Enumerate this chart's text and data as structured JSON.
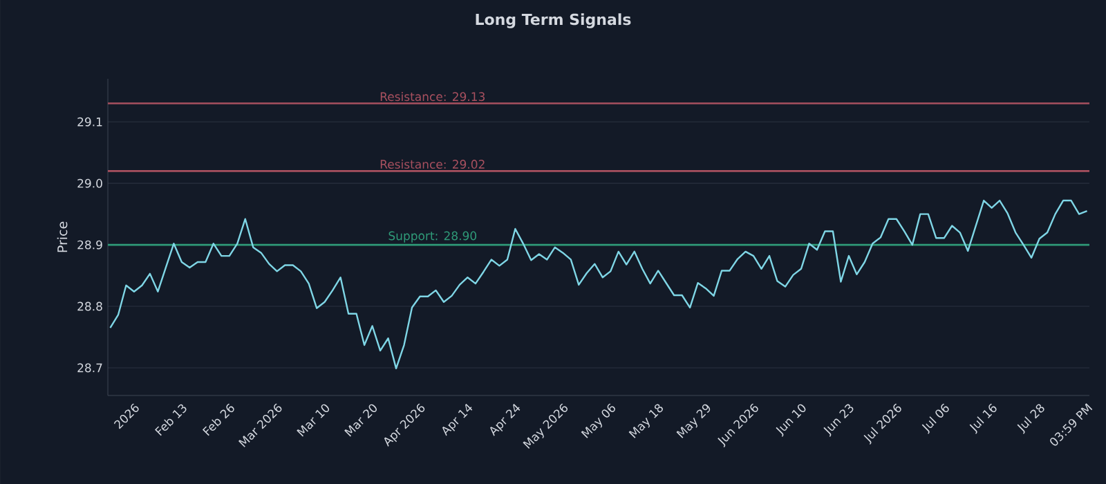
{
  "chart_data": {
    "type": "line",
    "title": "Long Term Signals",
    "ylabel": "Price",
    "categories": [
      null,
      null,
      null,
      "2026",
      null,
      null,
      null,
      null,
      null,
      "Feb 13",
      null,
      null,
      null,
      null,
      null,
      "Feb 26",
      null,
      null,
      null,
      null,
      null,
      "Mar 2026",
      null,
      null,
      null,
      null,
      null,
      "Mar 10",
      null,
      null,
      null,
      null,
      null,
      "Mar 20",
      null,
      null,
      null,
      null,
      null,
      "Apr 2026",
      null,
      null,
      null,
      null,
      null,
      "Apr 14",
      null,
      null,
      null,
      null,
      null,
      "Apr 24",
      null,
      null,
      null,
      null,
      null,
      "May 2026",
      null,
      null,
      null,
      null,
      null,
      "May 06",
      null,
      null,
      null,
      null,
      null,
      "May 18",
      null,
      null,
      null,
      null,
      null,
      "May 29",
      null,
      null,
      null,
      null,
      null,
      "Jun 2026",
      null,
      null,
      null,
      null,
      null,
      "Jun 10",
      null,
      null,
      null,
      null,
      null,
      "Jun 23",
      null,
      null,
      null,
      null,
      null,
      "Jul 2026",
      null,
      null,
      null,
      null,
      null,
      "Jul 06",
      null,
      null,
      null,
      null,
      null,
      "Jul 16",
      null,
      null,
      null,
      null,
      null,
      "Jul 28",
      null,
      null,
      null,
      null,
      null,
      "03:59 PM"
    ],
    "values": [
      28.765,
      28.786,
      28.834,
      28.824,
      28.834,
      28.853,
      28.824,
      28.863,
      28.902,
      28.872,
      28.863,
      28.872,
      28.872,
      28.902,
      28.882,
      28.882,
      28.902,
      28.942,
      28.896,
      28.887,
      28.869,
      28.857,
      28.867,
      28.867,
      28.857,
      28.837,
      28.797,
      28.807,
      28.826,
      28.847,
      28.788,
      28.788,
      28.737,
      28.768,
      28.728,
      28.748,
      28.699,
      28.737,
      28.798,
      28.816,
      28.816,
      28.826,
      28.807,
      28.817,
      28.835,
      28.847,
      28.837,
      28.856,
      28.876,
      28.866,
      28.876,
      28.926,
      28.902,
      28.875,
      28.885,
      28.876,
      28.896,
      28.887,
      28.876,
      28.835,
      28.854,
      28.869,
      28.847,
      28.857,
      28.889,
      28.868,
      28.889,
      28.861,
      28.837,
      28.858,
      28.838,
      28.818,
      28.818,
      28.798,
      28.838,
      28.829,
      28.817,
      28.858,
      28.858,
      28.877,
      28.889,
      28.882,
      28.861,
      28.882,
      28.841,
      28.832,
      28.851,
      28.861,
      28.902,
      28.892,
      28.922,
      28.922,
      28.84,
      28.882,
      28.852,
      28.872,
      28.902,
      28.912,
      28.942,
      28.942,
      28.922,
      28.9,
      28.95,
      28.95,
      28.911,
      28.911,
      28.931,
      28.92,
      28.89,
      28.931,
      28.972,
      28.96,
      28.972,
      28.951,
      28.92,
      28.9,
      28.879,
      28.91,
      28.92,
      28.95,
      28.972,
      28.972,
      28.95,
      28.955
    ],
    "color": "#7fd6e6",
    "ylim": [
      28.655,
      29.17
    ],
    "yticks": [
      28.7,
      28.8,
      28.9,
      {
        "value": 29.0,
        "label": "29.0"
      },
      29.1
    ],
    "grid": "y",
    "ref_lines": [
      {
        "axis": "y",
        "value": 29.13,
        "label": "Resistance: 29.13",
        "color": "#a8505f"
      },
      {
        "axis": "y",
        "value": 29.02,
        "label": "Resistance: 29.02",
        "color": "#a8505f"
      },
      {
        "axis": "y",
        "value": 28.9,
        "label": "Support: 28.90",
        "color": "#2f9a78"
      }
    ]
  }
}
